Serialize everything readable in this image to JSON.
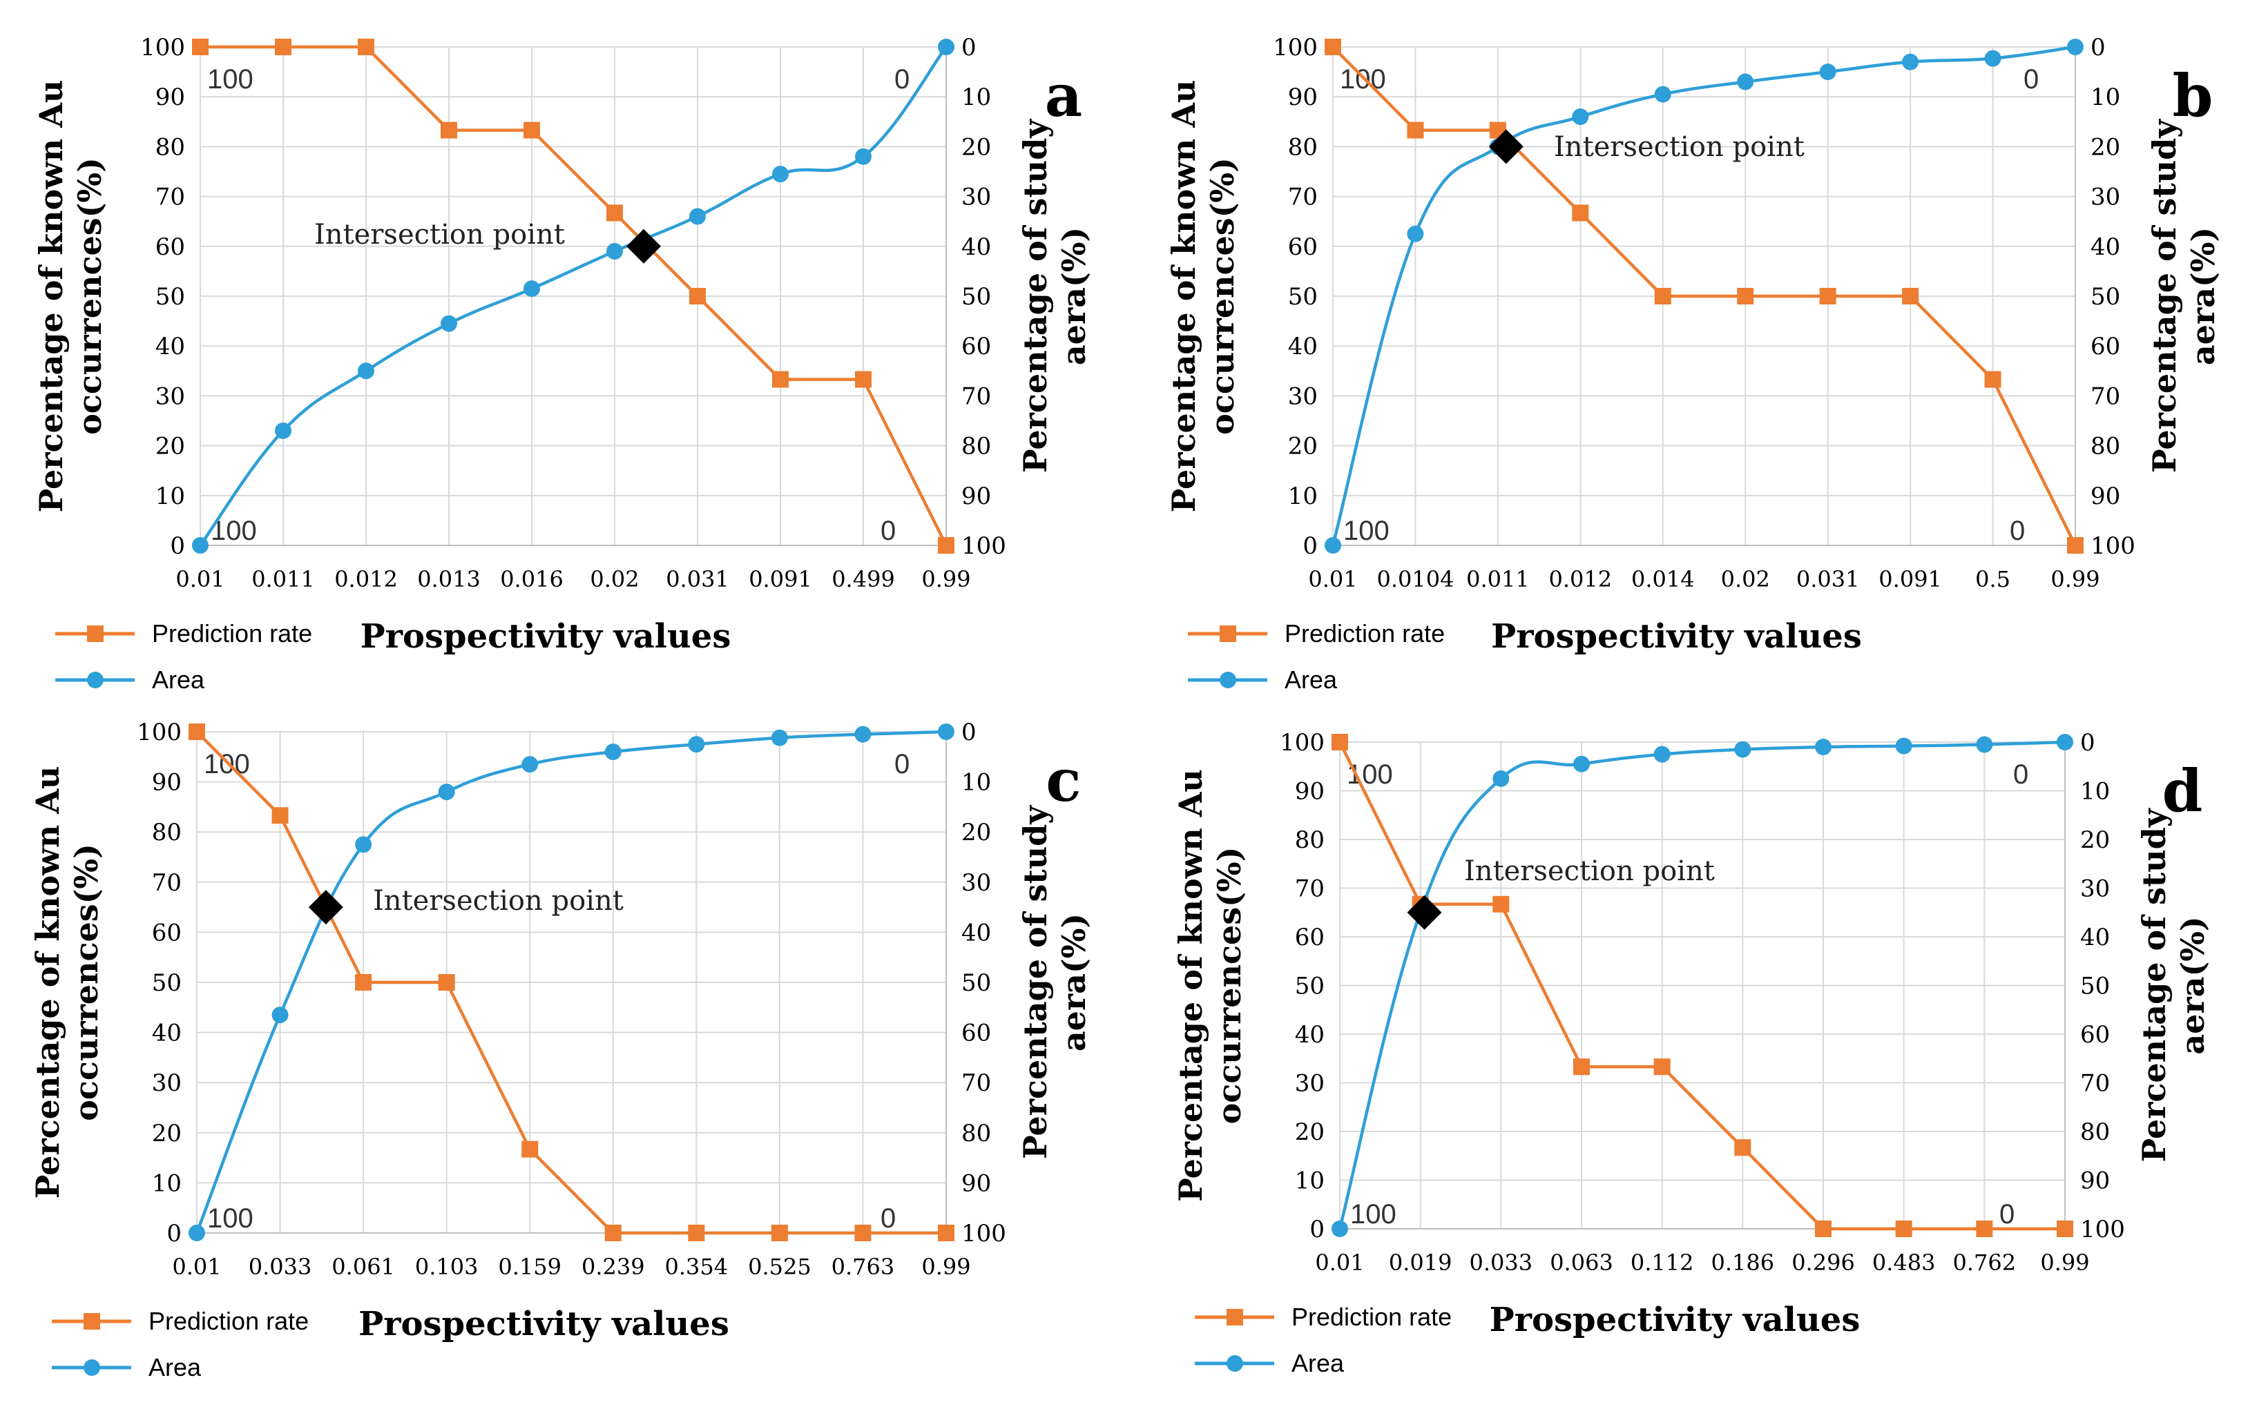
{
  "chart_data": [
    {
      "type": "line",
      "panel": "a",
      "xlabel": "Prospectivity values",
      "ylabel": "Percentage of known Au occurrences(%)",
      "ylabel_lines": [
        "Percentage of known Au",
        "occurrences(%)"
      ],
      "y2label": "Percentage of study aera(%)",
      "y2label_lines": [
        "Percentage of study",
        "aera(%)"
      ],
      "ylim": [
        0,
        100
      ],
      "y2lim": [
        100,
        0
      ],
      "yticks": [
        "0",
        "10",
        "20",
        "30",
        "40",
        "50",
        "60",
        "70",
        "80",
        "90",
        "100"
      ],
      "y2ticks": [
        "100",
        "90",
        "80",
        "70",
        "60",
        "50",
        "40",
        "30",
        "20",
        "10",
        "0"
      ],
      "categories": [
        "0.01",
        "0.011",
        "0.012",
        "0.013",
        "0.016",
        "0.02",
        "0.031",
        "0.091",
        "0.499",
        "0.99"
      ],
      "series": [
        {
          "name": "Prediction rate",
          "color": "#ED7D31",
          "marker": "square",
          "smooth": false,
          "values": [
            100,
            100,
            100,
            83.3,
            83.3,
            66.7,
            50,
            33.3,
            33.3,
            0
          ]
        },
        {
          "name": "Area",
          "color": "#2E9FD8",
          "marker": "circle",
          "smooth": true,
          "values": [
            0,
            23,
            35,
            44.5,
            51.5,
            59,
            66,
            74.5,
            78,
            100
          ]
        }
      ],
      "intersection": {
        "label": "Intersection point",
        "x_index": 5.35,
        "y": 60
      },
      "annotations": {
        "left_top": "100",
        "left_bottom": "100",
        "right_top": "0",
        "right_bottom": "0"
      }
    },
    {
      "type": "line",
      "panel": "b",
      "xlabel": "Prospectivity values",
      "ylabel": "Percentage of known Au occurrences(%)",
      "ylabel_lines": [
        "Percentage of known Au",
        "occurrences(%)"
      ],
      "y2label": "Percentage of study aera(%)",
      "y2label_lines": [
        "Percentage of study",
        "aera(%)"
      ],
      "ylim": [
        0,
        100
      ],
      "y2lim": [
        100,
        0
      ],
      "yticks": [
        "0",
        "10",
        "20",
        "30",
        "40",
        "50",
        "60",
        "70",
        "80",
        "90",
        "100"
      ],
      "y2ticks": [
        "100",
        "90",
        "80",
        "70",
        "60",
        "50",
        "40",
        "30",
        "20",
        "10",
        "0"
      ],
      "categories": [
        "0.01",
        "0.0104",
        "0.011",
        "0.012",
        "0.014",
        "0.02",
        "0.031",
        "0.091",
        "0.5",
        "0.99"
      ],
      "series": [
        {
          "name": "Prediction rate",
          "color": "#ED7D31",
          "marker": "square",
          "smooth": false,
          "values": [
            100,
            83.3,
            83.3,
            66.7,
            50,
            50,
            50,
            50,
            33.3,
            0
          ]
        },
        {
          "name": "Area",
          "color": "#2E9FD8",
          "marker": "circle",
          "smooth": true,
          "values": [
            0,
            62.5,
            80,
            86,
            90.5,
            93,
            95,
            97,
            97.7,
            100
          ]
        }
      ],
      "intersection": {
        "label": "Intersection point",
        "x_index": 2.1,
        "y": 80
      },
      "annotations": {
        "left_top": "100",
        "left_bottom": "100",
        "right_top": "0",
        "right_bottom": "0"
      }
    },
    {
      "type": "line",
      "panel": "c",
      "xlabel": "Prospectivity values",
      "ylabel": "Percentage of known Au occurrences(%)",
      "ylabel_lines": [
        "Percentage of known Au",
        "occurrences(%)"
      ],
      "y2label": "Percentage of study aera(%)",
      "y2label_lines": [
        "Percentage of study",
        "aera(%)"
      ],
      "ylim": [
        0,
        100
      ],
      "y2lim": [
        100,
        0
      ],
      "yticks": [
        "0",
        "10",
        "20",
        "30",
        "40",
        "50",
        "60",
        "70",
        "80",
        "90",
        "100"
      ],
      "y2ticks": [
        "100",
        "90",
        "80",
        "70",
        "60",
        "50",
        "40",
        "30",
        "20",
        "10",
        "0"
      ],
      "categories": [
        "0.01",
        "0.033",
        "0.061",
        "0.103",
        "0.159",
        "0.239",
        "0.354",
        "0.525",
        "0.763",
        "0.99"
      ],
      "series": [
        {
          "name": "Prediction rate",
          "color": "#ED7D31",
          "marker": "square",
          "smooth": false,
          "values": [
            100,
            83.3,
            50,
            50,
            16.7,
            0,
            0,
            0,
            0,
            0
          ]
        },
        {
          "name": "Area",
          "color": "#2E9FD8",
          "marker": "circle",
          "smooth": true,
          "values": [
            0,
            43.5,
            77.5,
            88,
            93.5,
            96,
            97.5,
            98.8,
            99.5,
            100
          ]
        }
      ],
      "intersection": {
        "label": "Intersection point",
        "x_index": 1.55,
        "y": 65
      },
      "annotations": {
        "left_top": "100",
        "left_bottom": "100",
        "right_top": "0",
        "right_bottom": "0"
      }
    },
    {
      "type": "line",
      "panel": "d",
      "xlabel": "Prospectivity values",
      "ylabel": "Percentage of known Au occurrences(%)",
      "ylabel_lines": [
        "Percentage of known Au",
        "occurrences(%)"
      ],
      "y2label": "Percentage of study aera(%)",
      "y2label_lines": [
        "Percentage of study",
        "aera(%)"
      ],
      "ylim": [
        0,
        100
      ],
      "y2lim": [
        100,
        0
      ],
      "yticks": [
        "0",
        "10",
        "20",
        "30",
        "40",
        "50",
        "60",
        "70",
        "80",
        "90",
        "100"
      ],
      "y2ticks": [
        "100",
        "90",
        "80",
        "70",
        "60",
        "50",
        "40",
        "30",
        "20",
        "10",
        "0"
      ],
      "categories": [
        "0.01",
        "0.019",
        "0.033",
        "0.063",
        "0.112",
        "0.186",
        "0.296",
        "0.483",
        "0.762",
        "0.99"
      ],
      "series": [
        {
          "name": "Prediction rate",
          "color": "#ED7D31",
          "marker": "square",
          "smooth": false,
          "values": [
            100,
            66.7,
            66.7,
            33.3,
            33.3,
            16.7,
            0,
            0,
            0,
            0
          ]
        },
        {
          "name": "Area",
          "color": "#2E9FD8",
          "marker": "circle",
          "smooth": true,
          "values": [
            0,
            65,
            92.5,
            95.5,
            97.5,
            98.5,
            99,
            99.2,
            99.5,
            100
          ]
        }
      ],
      "intersection": {
        "label": "Intersection point",
        "x_index": 1.05,
        "y": 65
      },
      "annotations": {
        "left_top": "100",
        "left_bottom": "100",
        "right_top": "0",
        "right_bottom": "0"
      }
    }
  ]
}
